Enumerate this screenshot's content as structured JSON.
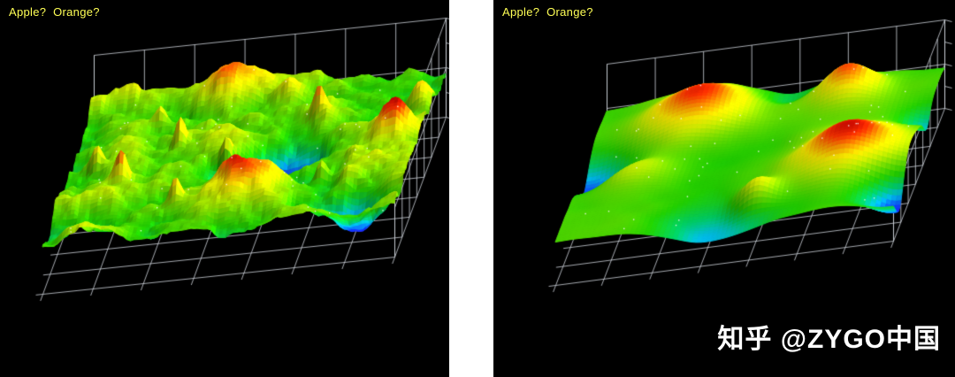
{
  "watermark": "知乎 @ZYGO中国",
  "panels": [
    {
      "label": "Apple?  Orange?"
    },
    {
      "label": "Apple?  Orange?"
    }
  ],
  "chart_data": [
    {
      "type": "surface",
      "title": "Apple?  Orange?",
      "description": "Rough, high-spatial-frequency 3D surface height map on black background with wireframe axis box; rainbow height colormap (blue/violet = low, green = mid, yellow/orange/red = high). Deep blue pit right of center, large red peak at front-center, red ridges along back edge and right edge, blue depression at front-right corner, many small spiky peaks.",
      "colormap": [
        [
          0.0,
          "#5500cc"
        ],
        [
          0.1,
          "#1133ff"
        ],
        [
          0.2,
          "#00bbee"
        ],
        [
          0.3,
          "#00cc66"
        ],
        [
          0.42,
          "#22cc00"
        ],
        [
          0.55,
          "#77dd00"
        ],
        [
          0.66,
          "#ccee00"
        ],
        [
          0.75,
          "#ffee00"
        ],
        [
          0.84,
          "#ff9900"
        ],
        [
          0.92,
          "#ff3300"
        ],
        [
          1.0,
          "#bb0000"
        ]
      ],
      "base": 0.5,
      "noise": {
        "seed": 11,
        "freq": 7,
        "octaves": 4,
        "amp": 0.3
      },
      "features": [
        {
          "u": 0.63,
          "v": 0.5,
          "r": 0.12,
          "amp": -0.5
        },
        {
          "u": 0.55,
          "v": 0.24,
          "r": 0.1,
          "amp": 0.48
        },
        {
          "u": 0.4,
          "v": 0.93,
          "r": 0.09,
          "amp": 0.42
        },
        {
          "u": 0.58,
          "v": 0.88,
          "r": 0.05,
          "amp": 0.3
        },
        {
          "u": 0.93,
          "v": 0.5,
          "r": 0.06,
          "amp": 0.4
        },
        {
          "u": 0.88,
          "v": 0.1,
          "r": 0.09,
          "amp": -0.45
        },
        {
          "u": 0.97,
          "v": 0.75,
          "r": 0.05,
          "amp": 0.35
        },
        {
          "u": 0.17,
          "v": 0.38,
          "r": 0.02,
          "amp": 0.32
        },
        {
          "u": 0.08,
          "v": 0.52,
          "r": 0.02,
          "amp": 0.3
        },
        {
          "u": 0.3,
          "v": 0.62,
          "r": 0.02,
          "amp": 0.34
        },
        {
          "u": 0.22,
          "v": 0.8,
          "r": 0.02,
          "amp": 0.3
        },
        {
          "u": 0.45,
          "v": 0.5,
          "r": 0.02,
          "amp": 0.32
        },
        {
          "u": 0.68,
          "v": 0.72,
          "r": 0.02,
          "amp": 0.3
        },
        {
          "u": 0.35,
          "v": 0.2,
          "r": 0.02,
          "amp": 0.3
        },
        {
          "u": 0.75,
          "v": 0.3,
          "r": 0.02,
          "amp": 0.28
        }
      ],
      "grid_divisions": 7,
      "mesh": 96,
      "speckles": 60,
      "background": "#000000",
      "grid_color": "#d0d4dc",
      "label_color": "#ffff55"
    },
    {
      "type": "surface",
      "title": "Apple?  Orange?",
      "description": "Smooth, low-spatial-frequency 3D surface height map on black background with wireframe axis box; rainbow height colormap. Broad red-orange domed bumps (large one at back-left-center, one at back-right, large one at right-middle, smaller orange mounds at left-middle and front-center), smooth green/yellow plateau elsewhere, blue falling edges at left and front-right; fine white speckle dots scattered on the surface.",
      "colormap": [
        [
          0.0,
          "#5500cc"
        ],
        [
          0.1,
          "#1133ff"
        ],
        [
          0.2,
          "#00bbee"
        ],
        [
          0.3,
          "#00cc66"
        ],
        [
          0.42,
          "#22cc00"
        ],
        [
          0.55,
          "#77dd00"
        ],
        [
          0.66,
          "#ccee00"
        ],
        [
          0.75,
          "#ffee00"
        ],
        [
          0.84,
          "#ff9900"
        ],
        [
          0.92,
          "#ff3300"
        ],
        [
          1.0,
          "#bb0000"
        ]
      ],
      "base": 0.5,
      "noise": {
        "seed": 23,
        "freq": 3,
        "octaves": 3,
        "amp": 0.1
      },
      "features": [
        {
          "u": 0.3,
          "v": 0.8,
          "r": 0.17,
          "amp": 0.45
        },
        {
          "u": 0.74,
          "v": 0.86,
          "r": 0.11,
          "amp": 0.4
        },
        {
          "u": 0.8,
          "v": 0.36,
          "r": 0.16,
          "amp": 0.48
        },
        {
          "u": 0.17,
          "v": 0.44,
          "r": 0.11,
          "amp": 0.26
        },
        {
          "u": 0.57,
          "v": 0.16,
          "r": 0.07,
          "amp": 0.32
        },
        {
          "u": 0.5,
          "v": 0.55,
          "r": 0.28,
          "amp": -0.1
        },
        {
          "u": 0.02,
          "v": 0.55,
          "r": 0.13,
          "amp": -0.4
        },
        {
          "u": 0.45,
          "v": 0.02,
          "r": 0.18,
          "amp": -0.3
        },
        {
          "u": 0.99,
          "v": 0.12,
          "r": 0.11,
          "amp": -0.42
        },
        {
          "u": 0.55,
          "v": 0.95,
          "r": 0.1,
          "amp": -0.18
        },
        {
          "u": 1.0,
          "v": 0.65,
          "r": 0.08,
          "amp": -0.25
        }
      ],
      "grid_divisions": 7,
      "mesh": 72,
      "speckles": 70,
      "background": "#000000",
      "grid_color": "#d0d4dc",
      "label_color": "#ffff55"
    }
  ]
}
